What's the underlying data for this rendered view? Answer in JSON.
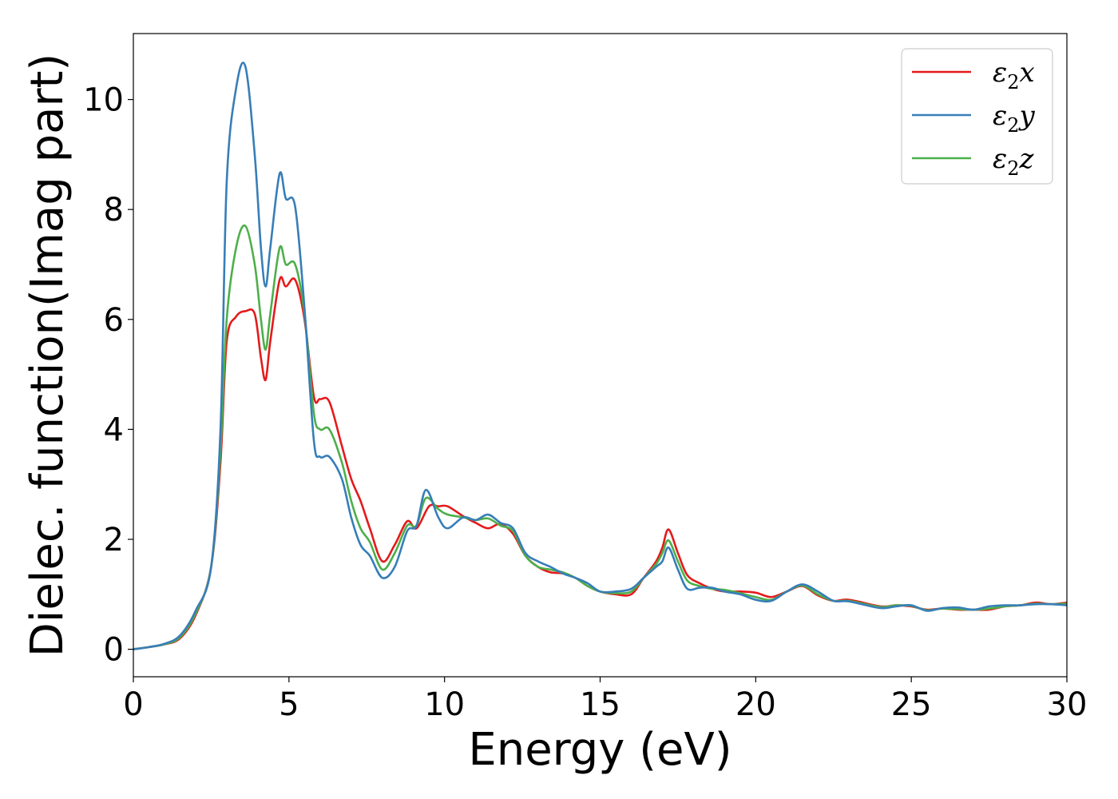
{
  "chart_data": {
    "type": "line",
    "title": "",
    "xlabel": "Energy (eV)",
    "ylabel": "Dielec. function(Imag part)",
    "xlim": [
      0,
      30
    ],
    "ylim": [
      -0.5,
      11.2
    ],
    "xticks": [
      0,
      5,
      10,
      15,
      20,
      25,
      30
    ],
    "yticks": [
      0,
      2,
      4,
      6,
      8,
      10
    ],
    "xtick_labels": [
      "0",
      "5",
      "10",
      "15",
      "20",
      "25",
      "30"
    ],
    "ytick_labels": [
      "0",
      "2",
      "4",
      "6",
      "8",
      "10"
    ],
    "grid": false,
    "legend_position": "top-right",
    "series": [
      {
        "name": "ε₂x",
        "legend_main": "ε",
        "legend_sub": "2",
        "legend_tail": "x",
        "color": "#e41a1c",
        "x": [
          0,
          0.5,
          1.0,
          1.5,
          2.0,
          2.5,
          2.8,
          3.0,
          3.3,
          3.6,
          3.9,
          4.1,
          4.25,
          4.4,
          4.7,
          4.9,
          5.2,
          5.5,
          5.8,
          6.0,
          6.3,
          6.7,
          7.0,
          7.3,
          7.6,
          8.0,
          8.4,
          8.8,
          9.1,
          9.5,
          9.8,
          10.1,
          10.6,
          11.0,
          11.4,
          11.8,
          12.2,
          12.6,
          13.0,
          13.4,
          13.8,
          14.2,
          14.6,
          15.0,
          15.5,
          16.0,
          16.4,
          16.8,
          17.0,
          17.2,
          17.5,
          17.8,
          18.2,
          18.6,
          19.0,
          19.5,
          20.0,
          20.5,
          21.0,
          21.5,
          22.0,
          22.5,
          23.0,
          24.0,
          24.5,
          25.0,
          25.5,
          26.0,
          26.5,
          27.0,
          27.5,
          28.0,
          28.5,
          29.0,
          29.5,
          30.0
        ],
        "y": [
          0,
          0.04,
          0.09,
          0.2,
          0.62,
          1.5,
          3.4,
          5.6,
          6.05,
          6.15,
          6.1,
          5.3,
          4.9,
          5.6,
          6.72,
          6.6,
          6.72,
          6.0,
          4.6,
          4.55,
          4.5,
          3.7,
          3.1,
          2.7,
          2.2,
          1.6,
          1.9,
          2.33,
          2.2,
          2.6,
          2.6,
          2.6,
          2.42,
          2.3,
          2.2,
          2.28,
          2.1,
          1.7,
          1.5,
          1.4,
          1.38,
          1.3,
          1.15,
          1.05,
          1.0,
          1.0,
          1.3,
          1.6,
          1.85,
          2.18,
          1.75,
          1.35,
          1.2,
          1.1,
          1.05,
          1.05,
          1.03,
          0.95,
          1.05,
          1.15,
          0.98,
          0.88,
          0.9,
          0.78,
          0.8,
          0.78,
          0.72,
          0.74,
          0.72,
          0.72,
          0.72,
          0.78,
          0.8,
          0.85,
          0.82,
          0.85
        ]
      },
      {
        "name": "ε₂y",
        "legend_main": "ε",
        "legend_sub": "2",
        "legend_tail": "y",
        "color": "#377eb8",
        "x": [
          0,
          0.5,
          1.0,
          1.5,
          2.0,
          2.5,
          2.8,
          3.0,
          3.3,
          3.6,
          3.9,
          4.1,
          4.25,
          4.4,
          4.7,
          4.9,
          5.2,
          5.5,
          5.8,
          6.0,
          6.3,
          6.7,
          7.0,
          7.3,
          7.6,
          8.0,
          8.4,
          8.8,
          9.1,
          9.4,
          9.8,
          10.1,
          10.6,
          11.0,
          11.4,
          11.8,
          12.2,
          12.6,
          13.0,
          13.4,
          13.8,
          14.2,
          14.6,
          15.0,
          15.5,
          16.0,
          16.4,
          16.8,
          17.0,
          17.2,
          17.5,
          17.8,
          18.2,
          18.6,
          19.0,
          19.5,
          20.0,
          20.5,
          21.0,
          21.5,
          22.0,
          22.5,
          23.0,
          24.0,
          24.5,
          25.0,
          25.5,
          26.0,
          26.5,
          27.0,
          27.5,
          28.0,
          28.5,
          29.0,
          29.5,
          30.0
        ],
        "y": [
          0,
          0.04,
          0.1,
          0.25,
          0.7,
          1.5,
          4.0,
          8.5,
          10.2,
          10.6,
          9.0,
          7.3,
          6.6,
          7.3,
          8.65,
          8.2,
          8.05,
          6.2,
          3.8,
          3.5,
          3.5,
          3.1,
          2.4,
          1.9,
          1.7,
          1.3,
          1.5,
          2.15,
          2.25,
          2.9,
          2.4,
          2.2,
          2.4,
          2.35,
          2.45,
          2.3,
          2.2,
          1.75,
          1.6,
          1.5,
          1.38,
          1.3,
          1.2,
          1.05,
          1.05,
          1.1,
          1.3,
          1.5,
          1.6,
          1.85,
          1.45,
          1.1,
          1.12,
          1.12,
          1.05,
          1.0,
          0.9,
          0.88,
          1.05,
          1.18,
          1.05,
          0.88,
          0.87,
          0.75,
          0.78,
          0.8,
          0.7,
          0.75,
          0.76,
          0.72,
          0.78,
          0.8,
          0.8,
          0.82,
          0.82,
          0.8
        ]
      },
      {
        "name": "ε₂z",
        "legend_main": "ε",
        "legend_sub": "2",
        "legend_tail": "z",
        "color": "#4daf4a",
        "x": [
          0,
          0.5,
          1.0,
          1.5,
          2.0,
          2.5,
          2.8,
          3.0,
          3.3,
          3.6,
          3.9,
          4.1,
          4.25,
          4.4,
          4.7,
          4.9,
          5.2,
          5.5,
          5.8,
          6.0,
          6.3,
          6.7,
          7.0,
          7.3,
          7.6,
          8.0,
          8.4,
          8.8,
          9.1,
          9.4,
          9.8,
          10.1,
          10.6,
          11.0,
          11.4,
          11.8,
          12.2,
          12.6,
          13.0,
          13.4,
          13.8,
          14.2,
          14.6,
          15.0,
          15.5,
          16.0,
          16.4,
          16.8,
          17.0,
          17.2,
          17.5,
          17.8,
          18.2,
          18.6,
          19.0,
          19.5,
          20.0,
          20.5,
          21.0,
          21.5,
          22.0,
          22.5,
          23.0,
          24.0,
          24.5,
          25.0,
          25.5,
          26.0,
          26.5,
          27.0,
          27.5,
          28.0,
          28.5,
          29.0,
          29.5,
          30.0
        ],
        "y": [
          0,
          0.04,
          0.09,
          0.22,
          0.65,
          1.5,
          3.6,
          6.0,
          7.3,
          7.7,
          7.0,
          6.0,
          5.45,
          6.1,
          7.3,
          7.0,
          7.0,
          6.1,
          4.3,
          4.0,
          4.0,
          3.4,
          2.7,
          2.2,
          1.95,
          1.45,
          1.75,
          2.25,
          2.25,
          2.75,
          2.55,
          2.45,
          2.4,
          2.35,
          2.38,
          2.25,
          2.15,
          1.7,
          1.5,
          1.45,
          1.4,
          1.3,
          1.15,
          1.05,
          1.02,
          1.05,
          1.3,
          1.55,
          1.75,
          1.98,
          1.6,
          1.25,
          1.15,
          1.1,
          1.08,
          1.02,
          0.95,
          0.9,
          1.05,
          1.16,
          1.0,
          0.88,
          0.88,
          0.77,
          0.8,
          0.79,
          0.71,
          0.74,
          0.73,
          0.72,
          0.74,
          0.78,
          0.8,
          0.83,
          0.82,
          0.83
        ]
      }
    ]
  }
}
